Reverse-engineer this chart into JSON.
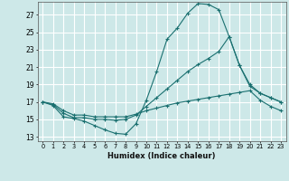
{
  "xlabel": "Humidex (Indice chaleur)",
  "background_color": "#cde8e8",
  "grid_color": "#ffffff",
  "line_color": "#1a7070",
  "xlim": [
    -0.5,
    23.5
  ],
  "ylim": [
    12.5,
    28.5
  ],
  "yticks": [
    13,
    15,
    17,
    19,
    21,
    23,
    25,
    27
  ],
  "xticks": [
    0,
    1,
    2,
    3,
    4,
    5,
    6,
    7,
    8,
    9,
    10,
    11,
    12,
    13,
    14,
    15,
    16,
    17,
    18,
    19,
    20,
    21,
    22,
    23
  ],
  "series": [
    {
      "x": [
        0,
        1,
        2,
        3,
        4,
        5,
        6,
        7,
        8,
        9,
        10,
        11,
        12,
        13,
        14,
        15,
        16,
        17,
        18,
        19,
        20,
        21,
        22,
        23
      ],
      "y": [
        17.0,
        16.6,
        15.3,
        15.1,
        14.8,
        14.3,
        13.8,
        13.4,
        13.3,
        14.5,
        17.2,
        20.5,
        24.2,
        25.5,
        27.2,
        28.3,
        28.2,
        27.6,
        24.5,
        21.2,
        18.8,
        18.0,
        17.5,
        17.0
      ]
    },
    {
      "x": [
        0,
        1,
        2,
        3,
        4,
        5,
        6,
        7,
        8,
        9,
        10,
        11,
        12,
        13,
        14,
        15,
        16,
        17,
        18,
        19,
        20,
        21,
        22,
        23
      ],
      "y": [
        17.0,
        16.7,
        15.7,
        15.2,
        15.2,
        15.0,
        15.0,
        14.9,
        15.0,
        15.5,
        16.5,
        17.5,
        18.5,
        19.5,
        20.5,
        21.3,
        22.0,
        22.8,
        24.5,
        21.2,
        19.0,
        18.0,
        17.5,
        17.0
      ]
    },
    {
      "x": [
        0,
        1,
        2,
        3,
        4,
        5,
        6,
        7,
        8,
        9,
        10,
        11,
        12,
        13,
        14,
        15,
        16,
        17,
        18,
        19,
        20,
        21,
        22,
        23
      ],
      "y": [
        17.0,
        16.8,
        16.0,
        15.5,
        15.5,
        15.3,
        15.3,
        15.3,
        15.3,
        15.6,
        16.0,
        16.3,
        16.6,
        16.9,
        17.1,
        17.3,
        17.5,
        17.7,
        17.9,
        18.1,
        18.3,
        17.2,
        16.5,
        16.0
      ]
    }
  ]
}
